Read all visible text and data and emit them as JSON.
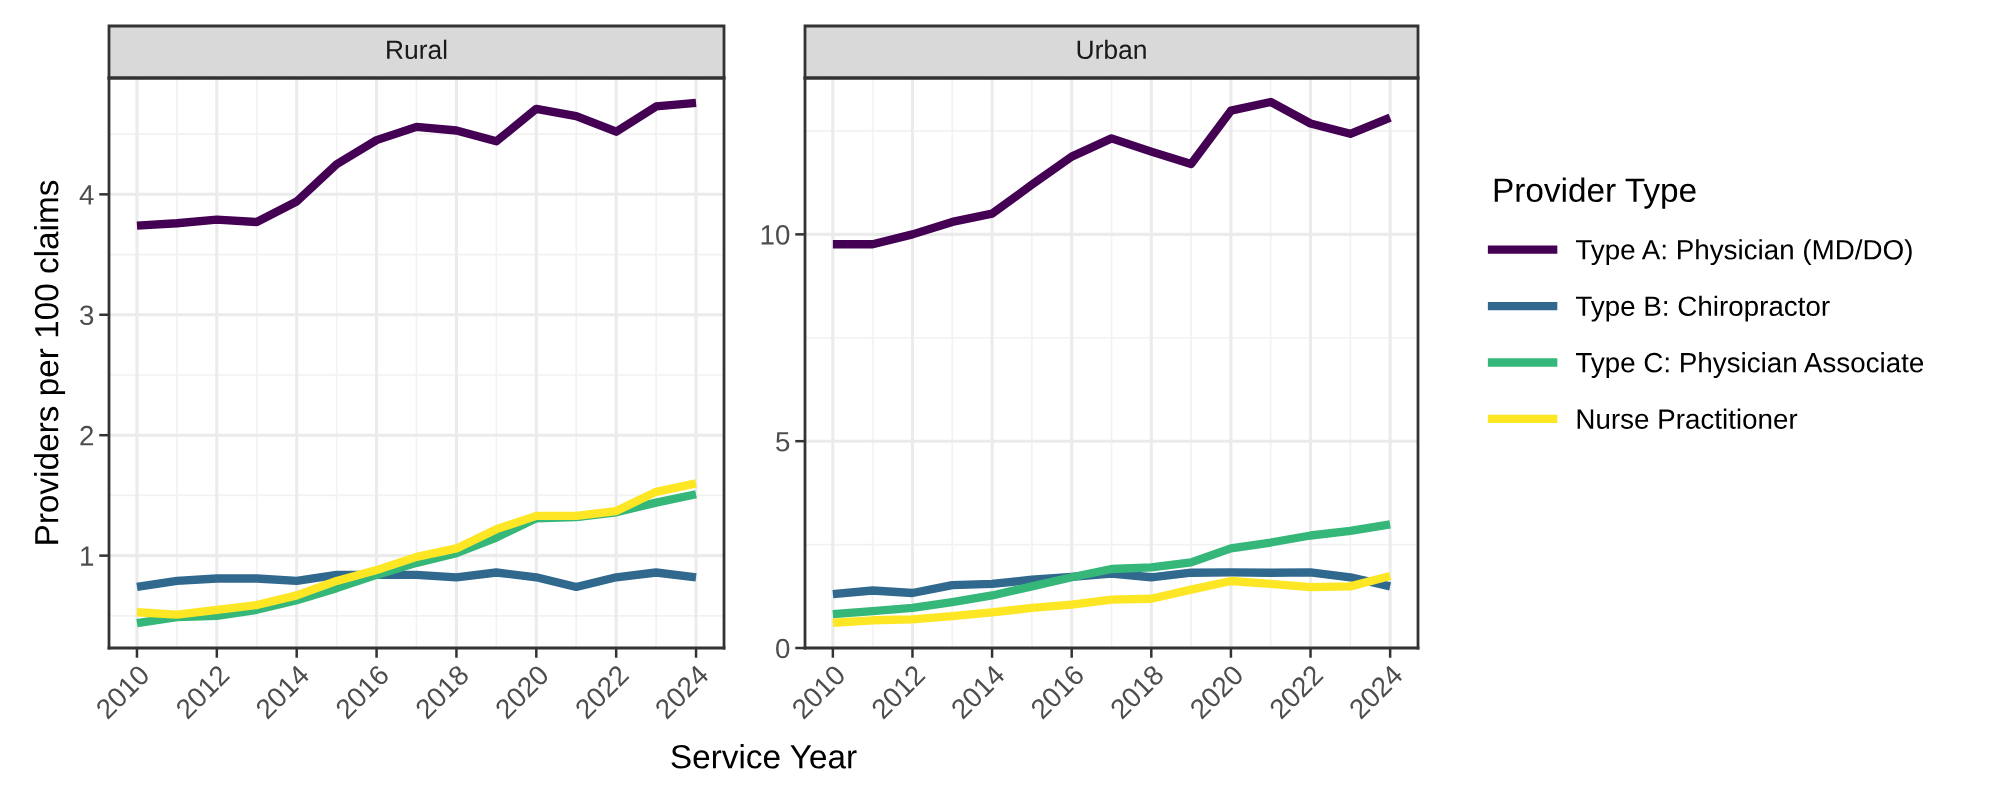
{
  "chart_data": [
    {
      "type": "line",
      "title": "Rural",
      "ylabel": "Providers per 100 claims",
      "xlabel": "Service Year",
      "x": [
        2010,
        2011,
        2012,
        2013,
        2014,
        2015,
        2016,
        2017,
        2018,
        2019,
        2020,
        2021,
        2022,
        2023,
        2024
      ],
      "xlim": [
        2009.3,
        2024.7
      ],
      "xticks": [
        2010,
        2012,
        2014,
        2016,
        2018,
        2020,
        2022,
        2024
      ],
      "ylim": [
        0.233,
        4.966
      ],
      "yticks": [
        1,
        2,
        3,
        4
      ],
      "grid": true,
      "series": [
        {
          "color": "#440154",
          "values": [
            3.74,
            3.76,
            3.79,
            3.77,
            3.94,
            4.25,
            4.45,
            4.56,
            4.53,
            4.44,
            4.71,
            4.65,
            4.52,
            4.73,
            4.76
          ]
        },
        {
          "color": "#31688e",
          "values": [
            0.74,
            0.79,
            0.81,
            0.81,
            0.79,
            0.84,
            0.84,
            0.84,
            0.82,
            0.86,
            0.82,
            0.74,
            0.82,
            0.86,
            0.82
          ]
        },
        {
          "color": "#35b779",
          "values": [
            0.44,
            0.49,
            0.5,
            0.55,
            0.63,
            0.73,
            0.84,
            0.94,
            1.02,
            1.15,
            1.31,
            1.32,
            1.36,
            1.44,
            1.51
          ]
        },
        {
          "color": "#fde725",
          "values": [
            0.53,
            0.51,
            0.55,
            0.59,
            0.67,
            0.79,
            0.88,
            0.99,
            1.06,
            1.22,
            1.33,
            1.33,
            1.37,
            1.53,
            1.6
          ]
        }
      ]
    },
    {
      "type": "line",
      "title": "Urban",
      "legend_title": "Provider Type",
      "x": [
        2010,
        2011,
        2012,
        2013,
        2014,
        2015,
        2016,
        2017,
        2018,
        2019,
        2020,
        2021,
        2022,
        2023,
        2024
      ],
      "xlim": [
        2009.3,
        2024.7
      ],
      "xticks": [
        2010,
        2012,
        2014,
        2016,
        2018,
        2020,
        2022,
        2024
      ],
      "ylim": [
        0,
        13.78
      ],
      "yticks": [
        0,
        5,
        10
      ],
      "grid": true,
      "legend": "right",
      "series": [
        {
          "name": "Type A: Physician (MD/DO)",
          "color": "#440154",
          "values": [
            9.76,
            9.76,
            10.0,
            10.3,
            10.5,
            11.2,
            11.88,
            12.32,
            12.0,
            11.7,
            12.99,
            13.2,
            12.68,
            12.43,
            12.82
          ]
        },
        {
          "name": "Type B: Chiropractor",
          "color": "#31688e",
          "values": [
            1.3,
            1.39,
            1.33,
            1.52,
            1.55,
            1.65,
            1.72,
            1.8,
            1.71,
            1.82,
            1.83,
            1.82,
            1.83,
            1.71,
            1.49
          ]
        },
        {
          "name": "Type C: Physician Associate",
          "color": "#35b779",
          "values": [
            0.82,
            0.89,
            0.97,
            1.11,
            1.27,
            1.49,
            1.71,
            1.91,
            1.95,
            2.07,
            2.41,
            2.55,
            2.72,
            2.83,
            2.99
          ]
        },
        {
          "name": "Nurse Practitioner",
          "color": "#fde725",
          "values": [
            0.61,
            0.67,
            0.69,
            0.77,
            0.86,
            0.97,
            1.05,
            1.17,
            1.19,
            1.41,
            1.62,
            1.55,
            1.47,
            1.49,
            1.74
          ]
        }
      ]
    }
  ]
}
